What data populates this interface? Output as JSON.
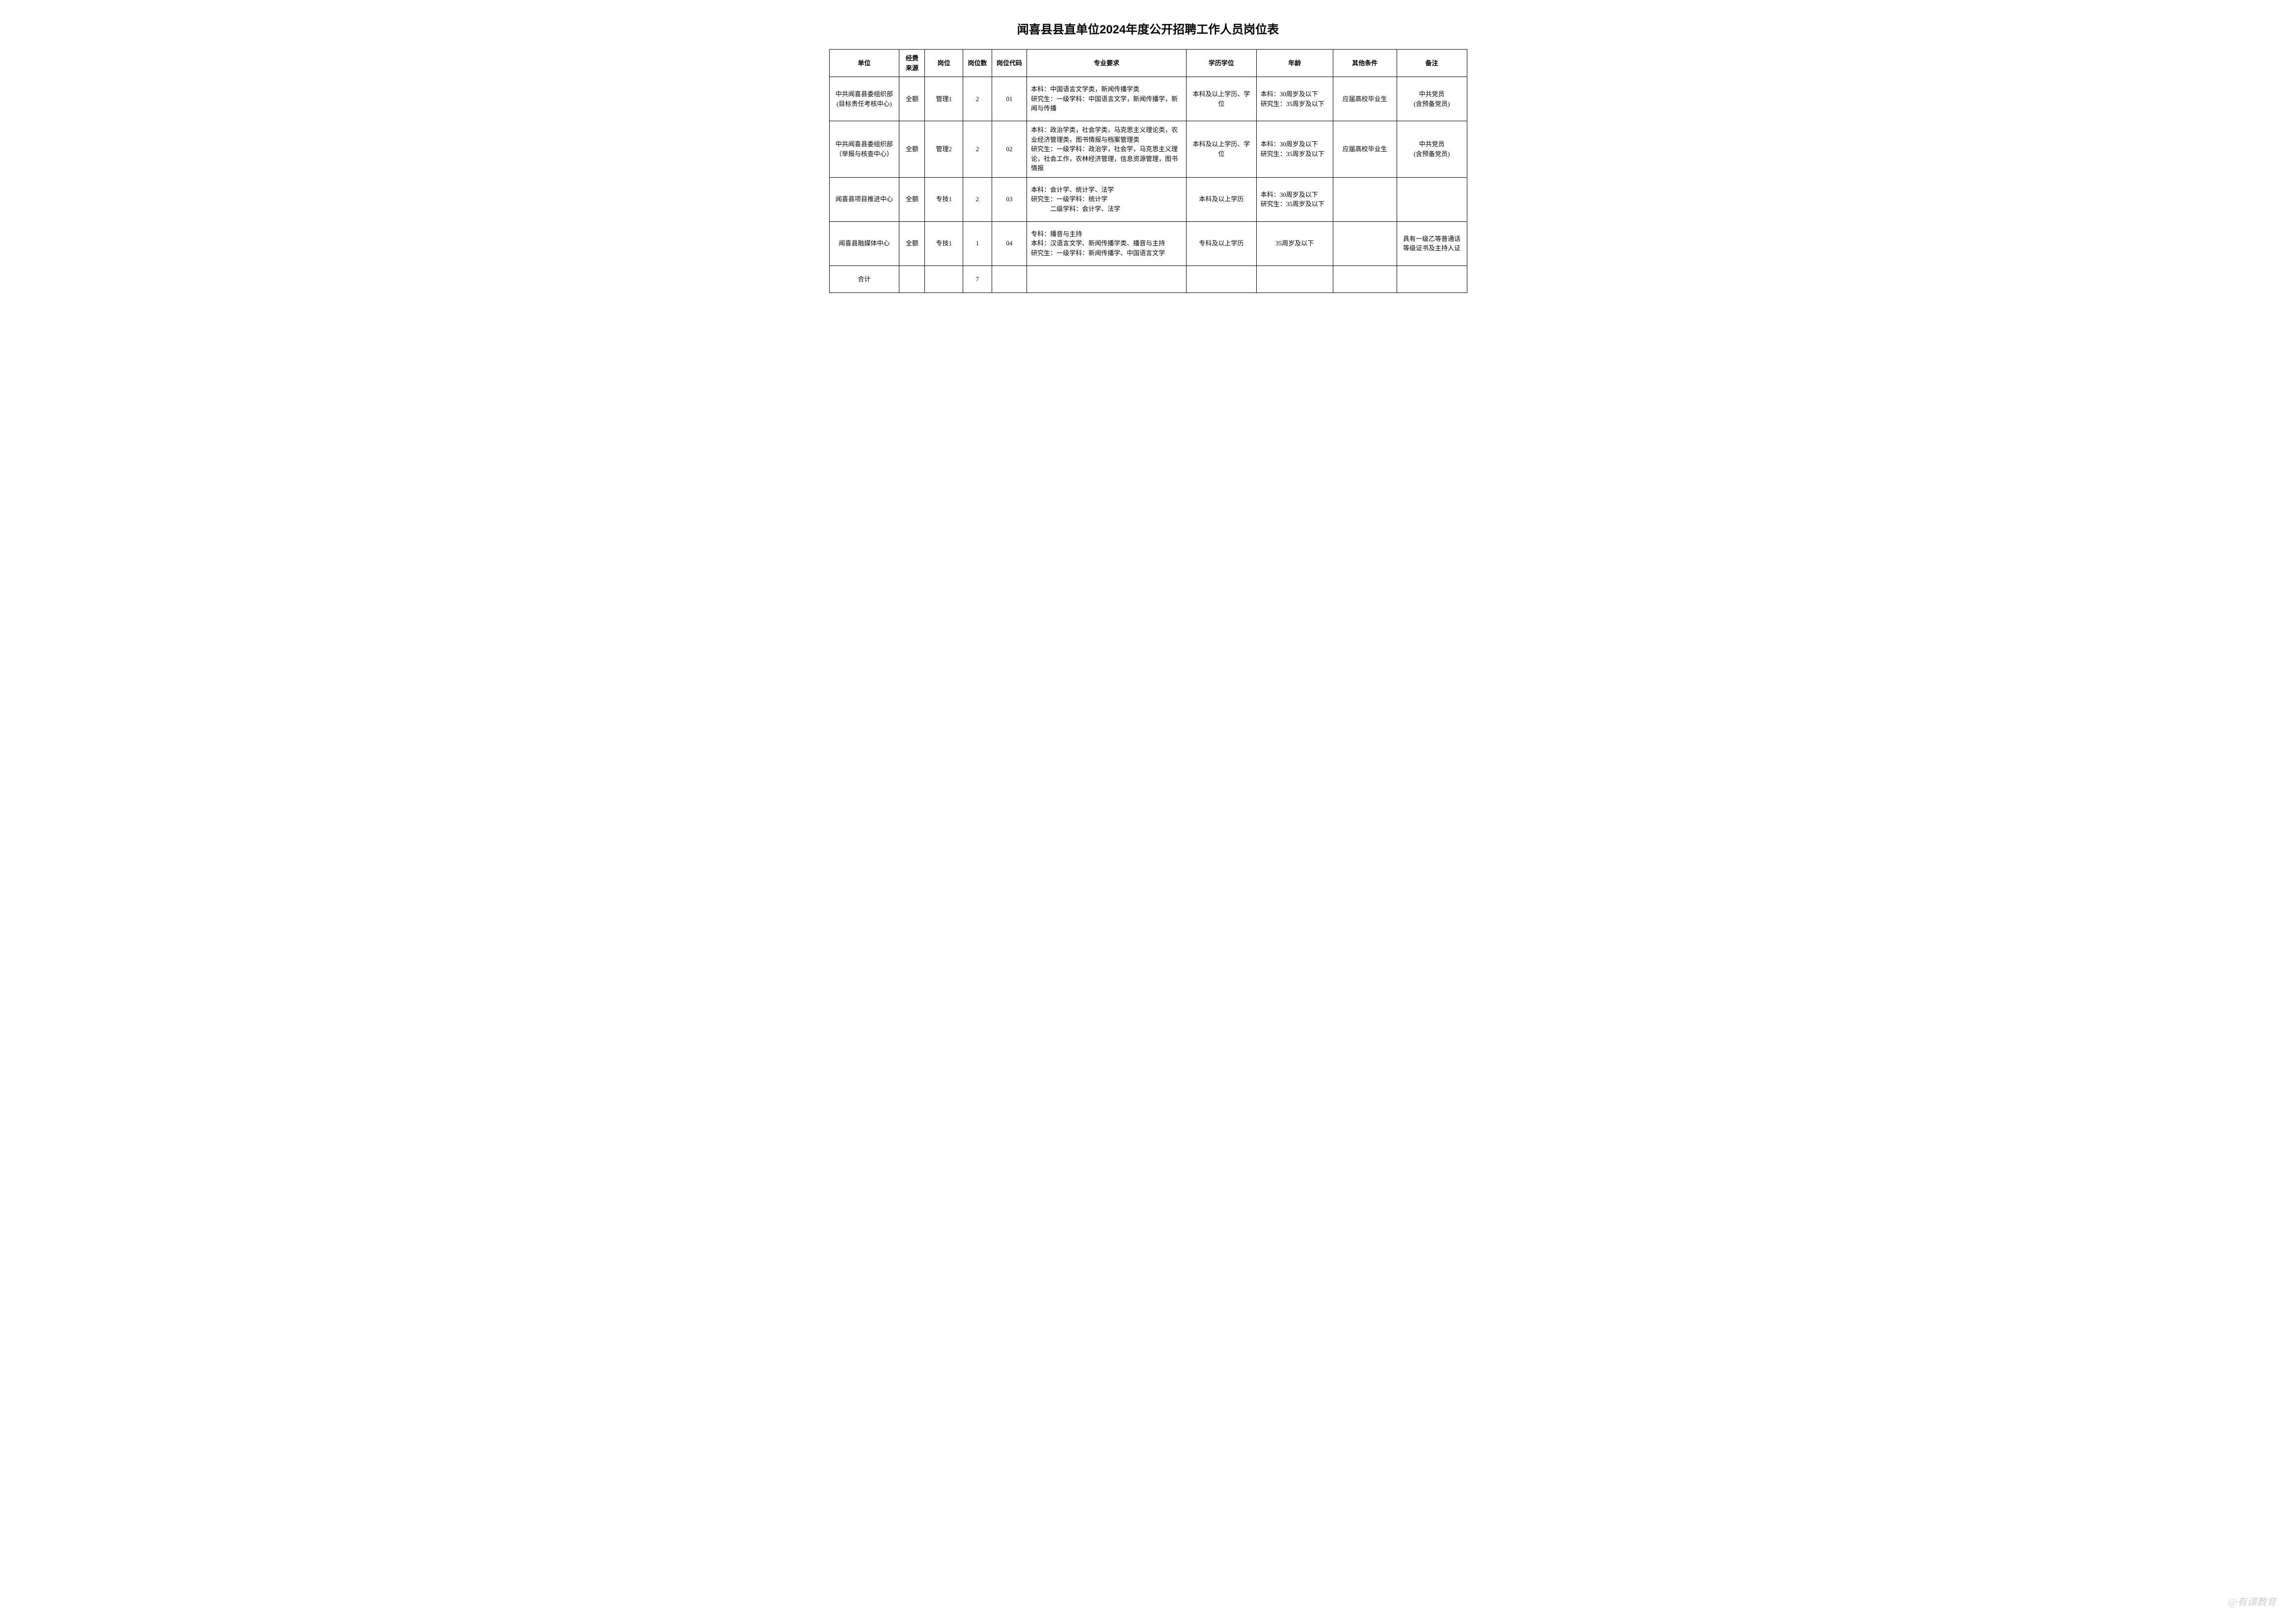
{
  "title": "闻喜县县直单位2024年度公开招聘工作人员岗位表",
  "headers": {
    "unit": "单位",
    "fund": "经费来源",
    "position": "岗位",
    "count": "岗位数",
    "code": "岗位代码",
    "major": "专业要求",
    "edu": "学历学位",
    "age": "年龄",
    "other": "其他条件",
    "remark": "备注"
  },
  "rows": [
    {
      "unit": "中共闻喜县委组织部\n(目标责任考核中心)",
      "fund": "全额",
      "position": "管理1",
      "count": "2",
      "code": "01",
      "major": "本科：中国语言文学类，新闻传播学类\n研究生：一级学科：中国语言文学，新闻传播学，新闻与传播",
      "edu": "本科及以上学历、学位",
      "age": "本科：30周岁及以下\n研究生：35周岁及以下",
      "other": "应届高校毕业生",
      "remark": "中共党员\n(含预备党员)"
    },
    {
      "unit": "中共闻喜县委组织部\n（举报与核查中心）",
      "fund": "全额",
      "position": "管理2",
      "count": "2",
      "code": "02",
      "major": "本科：政治学类，社会学类，马克思主义理论类，农业经济管理类，图书情报与档案管理类\n研究生：一级学科：政治学，社会学，马克思主义理论，社会工作，农林经济管理，信息资源管理，图书情报",
      "edu": "本科及以上学历、学位",
      "age": "本科：30周岁及以下\n研究生：35周岁及以下",
      "other": "应届高校毕业生",
      "remark": "中共党员\n(含预备党员)"
    },
    {
      "unit": "闻喜县项目推进中心",
      "fund": "全额",
      "position": "专技1",
      "count": "2",
      "code": "03",
      "major": "本科：会计学、统计学、法学\n研究生：一级学科：统计学\n　　　二级学科：会计学、法学",
      "edu": "本科及以上学历",
      "age": "本科：30周岁及以下\n研究生：35周岁及以下",
      "other": "",
      "remark": ""
    },
    {
      "unit": "闻喜县融媒体中心",
      "fund": "全额",
      "position": "专技1",
      "count": "1",
      "code": "04",
      "major": "专科：播音与主持\n本科：汉语言文学、新闻传播学类、播音与主持\n研究生：一级学科：新闻传播学、中国语言文学",
      "edu": "专科及以上学历",
      "age": "35周岁及以下",
      "other": "",
      "remark": "具有一级乙等普通话等级证书及主持人证"
    }
  ],
  "total": {
    "label": "合计",
    "count": "7"
  },
  "watermark": "@有课教育",
  "style": {
    "background_color": "#ffffff",
    "border_color": "#000000",
    "text_color": "#000000",
    "title_fontsize": 24,
    "cell_fontsize": 13,
    "watermark_color": "rgba(150,150,150,0.45)"
  }
}
